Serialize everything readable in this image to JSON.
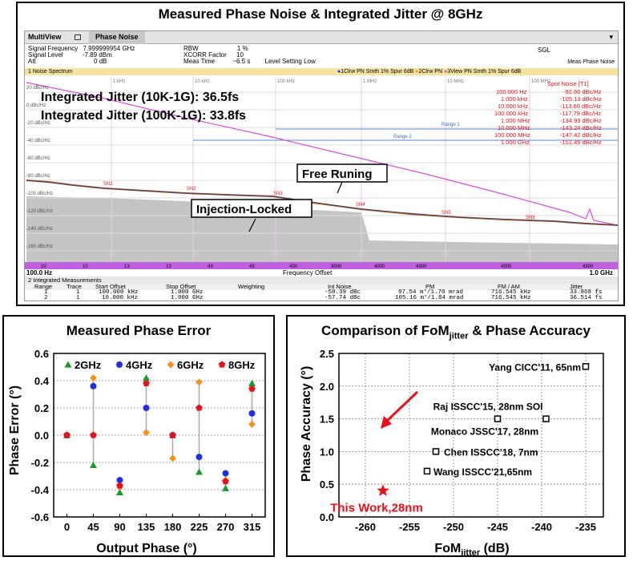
{
  "top": {
    "title": "Measured Phase Noise & Integrated Jitter @ 8GHz",
    "app": {
      "multiview": "MultiView",
      "tab": "Phase Noise",
      "sgl": "SGL",
      "meas_label": "Meas",
      "meas_value": "Phase Noise"
    },
    "params": [
      {
        "label": "Signal Frequency",
        "value": "7.999999954 GHz"
      },
      {
        "label": "Signal Level",
        "value": "-7.89 dBm"
      },
      {
        "label": "Att",
        "value": "0 dB"
      }
    ],
    "params2": [
      {
        "label": "RBW",
        "value": "1 %"
      },
      {
        "label": "XCORR Factor",
        "value": "10"
      },
      {
        "label": "Meas Time",
        "value": "~6.5 s"
      }
    ],
    "level_setting": "Level Setting Low",
    "spectrum_title": "1 Noise Spectrum",
    "traces_legend": [
      "1Clrw PN Smth 1% Spur 6dB",
      "2Clrw PN",
      "3View PN Smth 1% Spur 6dB"
    ],
    "jitter_10k": "Integrated Jitter (10K-1G): 36.5fs",
    "jitter_100k": "Integrated Jitter (100K-1G): 33.8fs",
    "free_running": "Free Runing",
    "injection_locked": "Injection-Locked",
    "spot_noise_title": "Spot Noise [T1]",
    "spot_noise": [
      {
        "offset": "100.000 Hz",
        "value": "-92.90 dBc/Hz"
      },
      {
        "offset": "1.000 kHz",
        "value": "-105.13 dBc/Hz"
      },
      {
        "offset": "10.000 kHz",
        "value": "-113.60 dBc/Hz"
      },
      {
        "offset": "100.000 kHz",
        "value": "-117.79 dBc/Hz"
      },
      {
        "offset": "1.000 MHz",
        "value": "-134.99 dBc/Hz"
      },
      {
        "offset": "10.000 MHz",
        "value": "-143.24 dBc/Hz"
      },
      {
        "offset": "100.000 MHz",
        "value": "-147.42 dBc/Hz"
      },
      {
        "offset": "1.000 GHz",
        "value": "-151.49 dBc/Hz"
      }
    ],
    "y_ticks": [
      "20 dBc/Hz",
      "0 dBc/Hz",
      "-20 dBc/Hz",
      "-40 dBc/Hz",
      "-60 dBc/Hz",
      "-80 dBc/Hz",
      "-100 dBc/Hz",
      "-120 dBc/Hz",
      "-140 dBc/Hz",
      "-160 dBc/Hz"
    ],
    "decade_labels": [
      "1 kHz",
      "10 kHz",
      "100 kHz",
      "1 MHz",
      "10 MHz",
      "100 MHz"
    ],
    "range_labels": [
      "Range 1",
      "Range 2"
    ],
    "sn_markers": [
      "SN1",
      "SN2",
      "SN3",
      "SN4",
      "SN5",
      "SN6"
    ],
    "bottom_bar": [
      "10",
      "10",
      "13",
      "13",
      "43",
      "43",
      "430",
      "3000",
      "4000",
      "4300",
      "4300",
      "4300"
    ],
    "x_start": "100.0 Hz",
    "x_label": "Frequency Offset",
    "x_end": "1.0 GHz",
    "table_title": "2 Integrated Measurements",
    "table_headers": [
      "Range",
      "Trace",
      "Start Offset",
      "Stop Offset",
      "Weighting",
      "Int Noise",
      "PM",
      "FM / AM",
      "Jitter"
    ],
    "table_rows": [
      [
        "1",
        "1",
        "100.000 kHz",
        "1.000 GHz",
        "",
        "-58.39 dBc",
        "97.54 m°/1.70 mrad",
        "716.545 kHz",
        "33.868 fs"
      ],
      [
        "2",
        "1",
        "10.000 kHz",
        "1.000 GHz",
        "",
        "-57.74 dBc",
        "105.16 m°/1.84 mrad",
        "716.545 kHz",
        "36.514 fs"
      ]
    ]
  },
  "left": {
    "title": "Measured Phase Error"
  },
  "right": {
    "title_main": "Comparison of FoM",
    "title_sub": "jitter",
    "title_tail": " & Phase Accuracy"
  },
  "colors": {
    "green": "#1a9a2a",
    "blue": "#1f2de8",
    "orange": "#f5911e",
    "red": "#e8101a",
    "magenta": "#d64fd6",
    "brown": "#a05a10",
    "purple_bar": "#c060e0"
  },
  "chart_data": [
    {
      "type": "scatter",
      "title": "Measured Phase Error",
      "xlabel": "Output Phase (°)",
      "ylabel": "Phase Error (°)",
      "categories": [
        "0",
        "45",
        "90",
        "135",
        "180",
        "225",
        "270",
        "315"
      ],
      "xlim": [
        -22.5,
        337.5
      ],
      "ylim": [
        -0.6,
        0.6
      ],
      "y_ticks": [
        "-0.6",
        "-0.4",
        "-0.2",
        "0.0",
        "0.2",
        "0.4",
        "0.6"
      ],
      "grid": "horizontal dashed",
      "legend": "top",
      "series": [
        {
          "name": "2GHz",
          "marker": "triangle",
          "color": "#1a9a2a",
          "values": [
            0.0,
            -0.22,
            -0.42,
            0.42,
            0.0,
            -0.27,
            -0.39,
            0.38
          ]
        },
        {
          "name": "4GHz",
          "marker": "circle",
          "color": "#1f2de8",
          "values": [
            0.0,
            0.36,
            -0.33,
            0.2,
            0.0,
            -0.16,
            -0.28,
            0.16
          ]
        },
        {
          "name": "6GHz",
          "marker": "diamond",
          "color": "#f5911e",
          "values": [
            0.0,
            0.42,
            -0.38,
            0.02,
            -0.17,
            0.39,
            -0.33,
            0.08
          ]
        },
        {
          "name": "8GHz",
          "marker": "pentagon",
          "color": "#e8101a",
          "values": [
            0.0,
            0.0,
            -0.37,
            0.38,
            0.0,
            0.2,
            -0.34,
            0.34
          ]
        }
      ]
    },
    {
      "type": "scatter",
      "title": "Comparison of FoMjitter & Phase Accuracy",
      "xlabel": "FoM",
      "xlabel_sub": "jitter",
      "xlabel_tail": " (dB)",
      "ylabel": "Phase Accuracy (°)",
      "xlim": [
        -263,
        -233
      ],
      "ylim": [
        0,
        2.5
      ],
      "x_ticks": [
        "-260",
        "-255",
        "-250",
        "-245",
        "-240",
        "-235"
      ],
      "y_ticks": [
        "0.0",
        "0.5",
        "1.0",
        "1.5",
        "2.0",
        "2.5"
      ],
      "grid": "dashed",
      "points": [
        {
          "label": "Yang CICC'11, 65nm",
          "x": -235,
          "y": 2.3
        },
        {
          "label": "Raj ISSCC'15, 28nm SOI",
          "x": -239.5,
          "y": 1.5
        },
        {
          "label": "Monaco JSSC'17, 28nm",
          "x": -245,
          "y": 1.5
        },
        {
          "label": "Chen ISSCC'18, 7nm",
          "x": -252,
          "y": 1.0
        },
        {
          "label": "Wang ISSCC'21,65nm",
          "x": -253,
          "y": 0.7
        },
        {
          "label": "This Work,28nm",
          "x": -258,
          "y": 0.4,
          "highlight": true
        }
      ]
    }
  ]
}
